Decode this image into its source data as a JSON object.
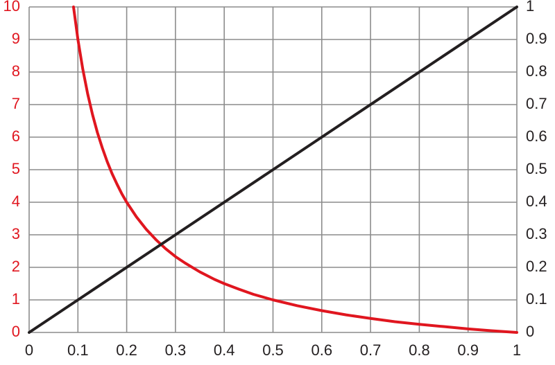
{
  "chart_data": {
    "type": "line",
    "title": "",
    "xlabel": "",
    "ylabel_left": "",
    "ylabel_right": "",
    "grid": true,
    "xlim": [
      0,
      1
    ],
    "ylim_left": [
      0,
      10
    ],
    "ylim_right": [
      0,
      1
    ],
    "x_ticks": [
      "0",
      "0.1",
      "0.2",
      "0.3",
      "0.4",
      "0.5",
      "0.6",
      "0.7",
      "0.8",
      "0.9",
      "1"
    ],
    "y_left_ticks": [
      "0",
      "1",
      "2",
      "3",
      "4",
      "5",
      "6",
      "7",
      "8",
      "9",
      "10"
    ],
    "y_right_ticks": [
      "0",
      "0.1",
      "0.2",
      "0.3",
      "0.4",
      "0.5",
      "0.6",
      "0.7",
      "0.8",
      "0.9",
      "1"
    ],
    "series": [
      {
        "axis": "left",
        "color": "#e0161f",
        "x": [
          0.091,
          0.1,
          0.11,
          0.12,
          0.13,
          0.14,
          0.15,
          0.16,
          0.17,
          0.18,
          0.19,
          0.2,
          0.22,
          0.24,
          0.26,
          0.28,
          0.3,
          0.32,
          0.35,
          0.38,
          0.4,
          0.43,
          0.46,
          0.5,
          0.55,
          0.6,
          0.65,
          0.7,
          0.75,
          0.8,
          0.85,
          0.9,
          0.95,
          1.0
        ],
        "y": [
          10.0,
          9.0,
          8.09,
          7.33,
          6.69,
          6.14,
          5.67,
          5.25,
          4.88,
          4.56,
          4.26,
          4.0,
          3.55,
          3.17,
          2.85,
          2.57,
          2.33,
          2.13,
          1.86,
          1.63,
          1.5,
          1.33,
          1.17,
          1.0,
          0.82,
          0.67,
          0.54,
          0.43,
          0.33,
          0.25,
          0.18,
          0.11,
          0.05,
          0.0
        ]
      },
      {
        "axis": "right",
        "color": "#231f20",
        "x": [
          0,
          1
        ],
        "y": [
          0,
          1
        ]
      }
    ],
    "colors": {
      "left_axis_labels": "#e0161f",
      "right_axis_labels": "#231f20",
      "x_axis_labels": "#231f20",
      "grid": "#8c8c8c"
    }
  }
}
